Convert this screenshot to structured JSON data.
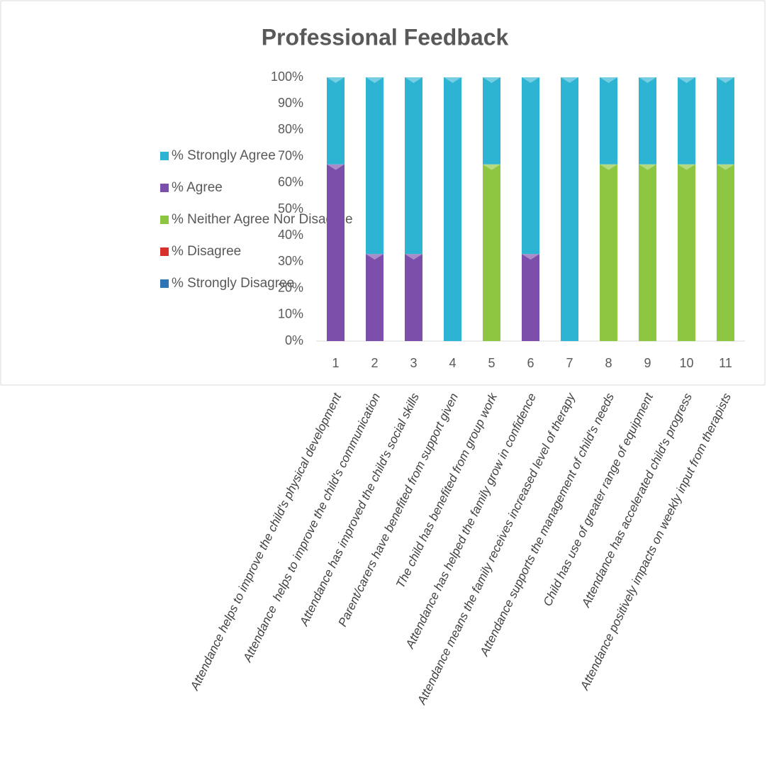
{
  "chart_data": {
    "type": "stacked_bar",
    "title": "Professional Feedback",
    "categories": [
      "1",
      "2",
      "3",
      "4",
      "5",
      "6",
      "7",
      "8",
      "9",
      "10",
      "11"
    ],
    "statements": [
      "Attendance helps to improve the child's physical development",
      "Attendance  helps to improve the child's communication",
      "Attendance has improved the child's social skills",
      "Parent/carers have benefited from support given",
      "The child has benefited from group work",
      "Attendance has helped the family grow in confidence",
      "Attendance means the family receives increased level of therapy",
      "Attendance supports the management of child's needs",
      "Child has use of greater range of equipment",
      "Attendance has accelerated child's progress",
      "Attendance positively impacts on weekly input from therapists"
    ],
    "series": [
      {
        "name": "% Strongly Agree",
        "color": "#2eb4d3",
        "values": [
          33,
          67,
          67,
          100,
          33,
          67,
          100,
          33,
          33,
          33,
          33
        ]
      },
      {
        "name": "% Agree",
        "color": "#7c4fab",
        "values": [
          67,
          33,
          33,
          0,
          0,
          33,
          0,
          0,
          0,
          0,
          0
        ]
      },
      {
        "name": "% Neither Agree Nor Disagree",
        "color": "#8dc640",
        "values": [
          0,
          0,
          0,
          0,
          67,
          0,
          0,
          67,
          67,
          67,
          67
        ]
      },
      {
        "name": "% Disagree",
        "color": "#d8302c",
        "values": [
          0,
          0,
          0,
          0,
          0,
          0,
          0,
          0,
          0,
          0,
          0
        ]
      },
      {
        "name": "% Strongly Disagree",
        "color": "#2e75b6",
        "values": [
          0,
          0,
          0,
          0,
          0,
          0,
          0,
          0,
          0,
          0,
          0
        ]
      }
    ],
    "ylim": [
      0,
      100
    ],
    "yticks": [
      {
        "value": 0,
        "label": "0%"
      },
      {
        "value": 10,
        "label": "10%"
      },
      {
        "value": 20,
        "label": "20%"
      },
      {
        "value": 30,
        "label": "30%"
      },
      {
        "value": 40,
        "label": "40%"
      },
      {
        "value": 50,
        "label": "50%"
      },
      {
        "value": 60,
        "label": "60%"
      },
      {
        "value": 70,
        "label": "70%"
      },
      {
        "value": 80,
        "label": "80%"
      },
      {
        "value": 90,
        "label": "90%"
      },
      {
        "value": 100,
        "label": "100%"
      }
    ],
    "grid": false,
    "legend": "left"
  }
}
